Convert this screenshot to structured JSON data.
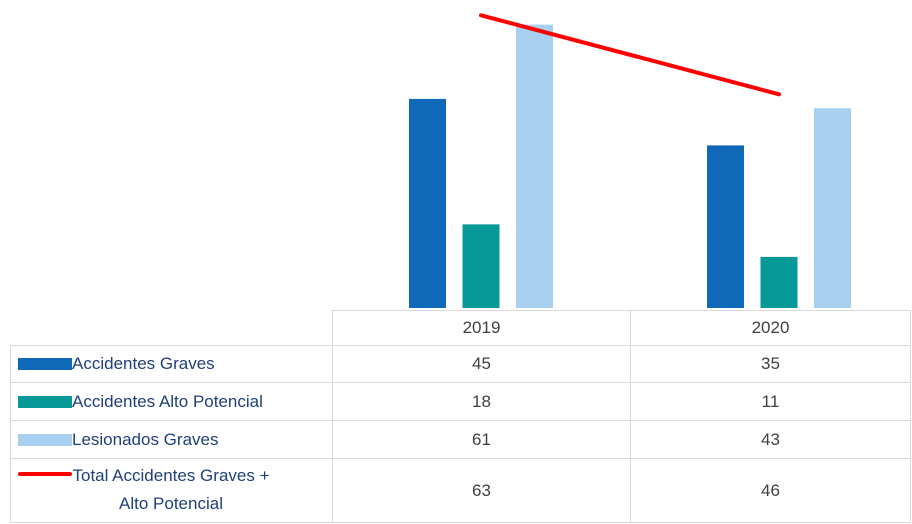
{
  "chart_data": {
    "type": "bar",
    "categories": [
      "2019",
      "2020"
    ],
    "series": [
      {
        "name": "Accidentes Graves",
        "color": "#1068b8",
        "values": [
          45,
          35
        ]
      },
      {
        "name": "Accidentes Alto Potencial",
        "color": "#069997",
        "values": [
          18,
          11
        ]
      },
      {
        "name": "Lesionados Graves",
        "color": "#a9cff0",
        "values": [
          61,
          43
        ]
      },
      {
        "name": "Total Accidentes Graves + Alto Potencial",
        "color": "#ff0000",
        "type": "line",
        "values": [
          63,
          46
        ]
      }
    ],
    "ylim": [
      0,
      65
    ]
  }
}
